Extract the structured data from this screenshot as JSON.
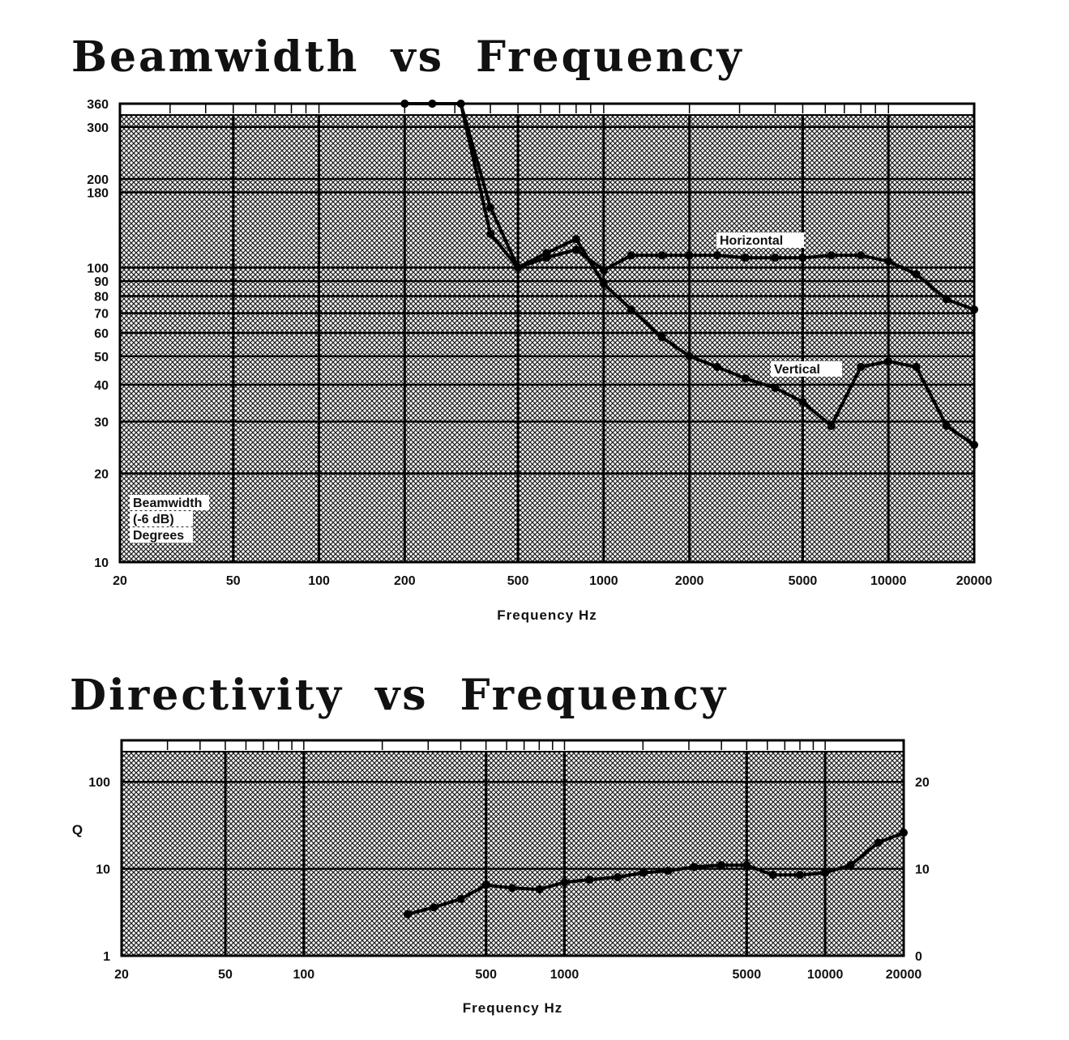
{
  "chart_data": [
    {
      "type": "line",
      "title": "Beamwidth vs Frequency",
      "xlabel": "Frequency Hz",
      "ylabel": "",
      "x_scale": "log",
      "y_scale": "log",
      "xlim": [
        20,
        20000
      ],
      "ylim": [
        10,
        360
      ],
      "x_ticks": [
        20,
        50,
        100,
        200,
        500,
        1000,
        2000,
        5000,
        10000,
        20000
      ],
      "x_tick_labels": [
        "20",
        "50",
        "100",
        "200",
        "500",
        "1000",
        "2000",
        "5000",
        "10000",
        "20000"
      ],
      "y_ticks": [
        10,
        20,
        30,
        40,
        50,
        60,
        70,
        80,
        90,
        100,
        180,
        200,
        300,
        360
      ],
      "y_tick_labels": [
        "10",
        "20",
        "30",
        "40",
        "50",
        "60",
        "70",
        "80",
        "90",
        "100",
        "180",
        "200",
        "300",
        "360"
      ],
      "legend_text": [
        "Beamwidth",
        "(-6 dB)",
        "Degrees"
      ],
      "annotations": [
        "Horizontal",
        "Vertical"
      ],
      "grid": true,
      "series": [
        {
          "name": "Horizontal",
          "x": [
            200,
            250,
            315,
            400,
            500,
            630,
            800,
            1000,
            1250,
            1600,
            2000,
            2500,
            3150,
            4000,
            5000,
            6300,
            8000,
            10000,
            12500,
            16000,
            20000
          ],
          "y": [
            360,
            360,
            360,
            160,
            100,
            108,
            115,
            98,
            110,
            110,
            110,
            110,
            108,
            108,
            108,
            110,
            110,
            105,
            95,
            78,
            72
          ]
        },
        {
          "name": "Vertical",
          "x": [
            200,
            250,
            315,
            400,
            500,
            630,
            800,
            1000,
            1250,
            1600,
            2000,
            2500,
            3150,
            4000,
            5000,
            6300,
            8000,
            10000,
            12500,
            16000,
            20000
          ],
          "y": [
            360,
            360,
            360,
            130,
            100,
            112,
            125,
            88,
            72,
            58,
            50,
            46,
            42,
            39,
            35,
            29,
            46,
            48,
            46,
            29,
            25
          ]
        }
      ]
    },
    {
      "type": "line",
      "title": "Directivity vs Frequency",
      "xlabel": "Frequency Hz",
      "ylabel": "Q",
      "x_scale": "log",
      "y_scale": "log",
      "xlim": [
        20,
        20000
      ],
      "ylim": [
        1,
        300
      ],
      "x_ticks": [
        20,
        50,
        100,
        500,
        1000,
        5000,
        10000,
        20000
      ],
      "x_tick_labels": [
        "20",
        "50",
        "100",
        "500",
        "1000",
        "5000",
        "10000",
        "20000"
      ],
      "y_ticks": [
        1,
        10,
        100
      ],
      "y_tick_labels": [
        "1",
        "10",
        "100"
      ],
      "y2_ticks": [
        0,
        10,
        20
      ],
      "y2_tick_labels": [
        "0",
        "10",
        "20"
      ],
      "grid": true,
      "series": [
        {
          "name": "",
          "x": [
            250,
            315,
            400,
            500,
            630,
            800,
            1000,
            1250,
            1600,
            2000,
            2500,
            3150,
            4000,
            5000,
            6300,
            8000,
            10000,
            12500,
            16000,
            20000
          ],
          "y": [
            3.0,
            3.6,
            4.5,
            6.5,
            6.0,
            5.8,
            7.0,
            7.5,
            8.0,
            9.0,
            9.5,
            10.5,
            11.0,
            11.0,
            8.5,
            8.5,
            9.0,
            11.0,
            20.0,
            26.0
          ]
        }
      ]
    }
  ]
}
